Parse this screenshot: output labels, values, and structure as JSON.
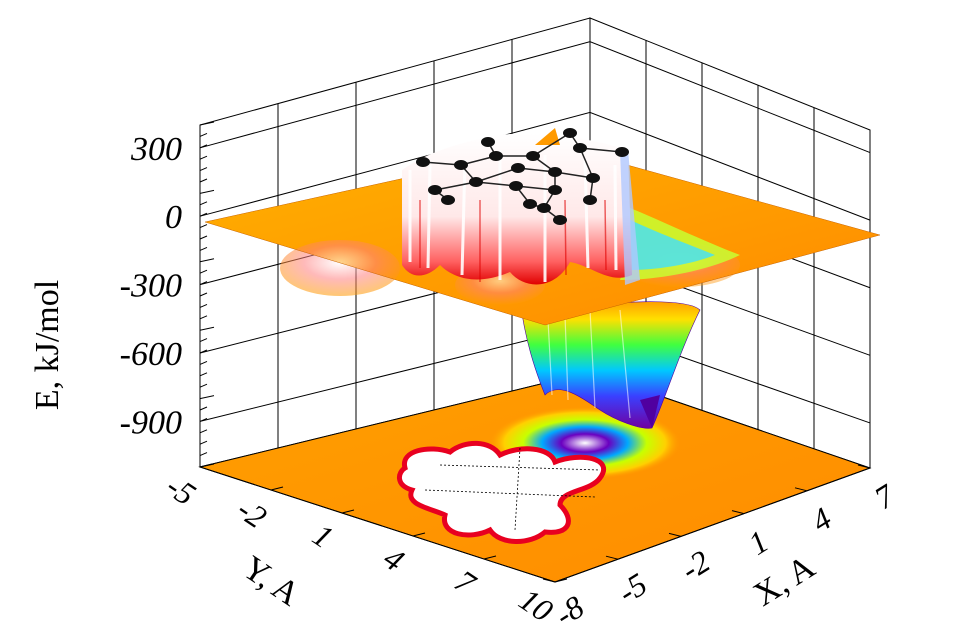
{
  "chart_data": {
    "type": "surface3d",
    "zlabel": "E, kJ/mol",
    "xlabel": "X, A",
    "ylabel": "Y, A",
    "z_ticks": [
      300,
      0,
      -300,
      -600,
      -900
    ],
    "x_ticks": [
      -8,
      -5,
      -2,
      1,
      4,
      7
    ],
    "y_ticks": [
      -5,
      -2,
      1,
      4,
      7,
      10
    ],
    "xlim": [
      -8,
      7
    ],
    "ylim": [
      -5,
      10
    ],
    "zlim": [
      -1100,
      400
    ],
    "colors": {
      "plateau": "#ff9a00",
      "repulsive": "#ffffff",
      "repulsive_edge": "#e00000",
      "well_deep": "#6a00c0",
      "well_mid": "#00c0ff",
      "well_shallow": "#c8ff00",
      "atom": "#111111"
    },
    "surface": {
      "plateau_energy": 0,
      "well_min_energy": -1000,
      "repulsive_cap_energy": 350
    }
  }
}
